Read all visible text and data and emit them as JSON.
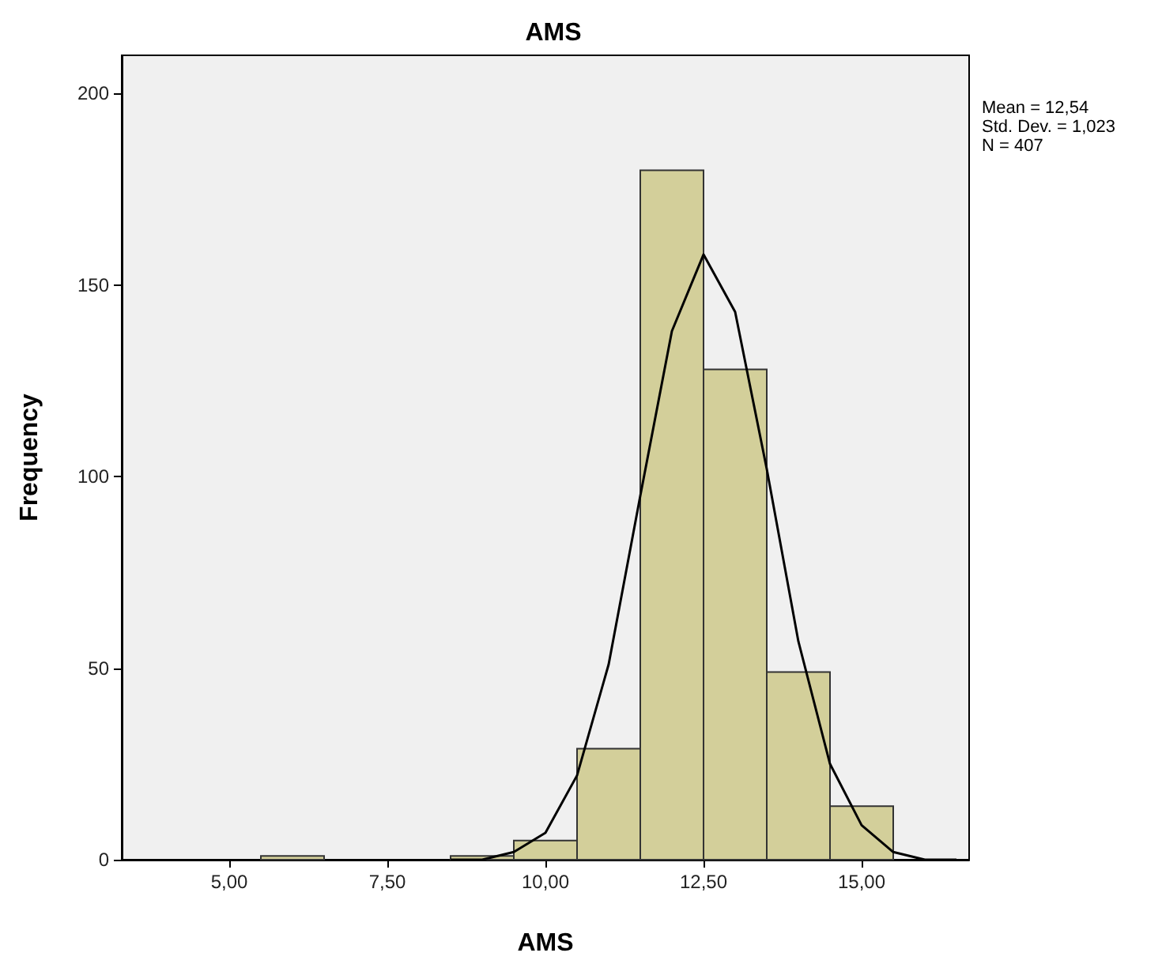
{
  "chart_data": {
    "type": "histogram",
    "title": "AMS",
    "xlabel": "AMS",
    "ylabel": "Frequency",
    "bins": [
      5.5,
      6.5,
      7.5,
      8.5,
      9.5,
      10.5,
      11.5,
      12.5,
      13.5,
      14.5,
      15.5
    ],
    "values": [
      1,
      0,
      0,
      1,
      5,
      29,
      180,
      128,
      49,
      14
    ],
    "color": "#d3cf9a",
    "series": [
      {
        "type": "line",
        "color": "#000000",
        "x": [
          8.5,
          9,
          9.5,
          10,
          10.5,
          11,
          11.5,
          12,
          12.5,
          13,
          13.5,
          14,
          14.5,
          15,
          15.5,
          16,
          16.5
        ],
        "values": [
          0,
          0,
          2,
          7,
          22,
          51,
          95,
          138,
          158,
          143,
          102,
          57,
          25,
          9,
          2,
          0,
          0
        ]
      }
    ],
    "xlim": [
      3.3,
      16.7
    ],
    "ylim": [
      0,
      210
    ],
    "xticks": [
      {
        "value": 5,
        "label": "5,00"
      },
      {
        "value": 7.5,
        "label": "7,50"
      },
      {
        "value": 10,
        "label": "10,00"
      },
      {
        "value": 12.5,
        "label": "12,50"
      },
      {
        "value": 15,
        "label": "15,00"
      }
    ],
    "yticks": [
      0,
      50,
      100,
      150,
      200
    ],
    "grid": false,
    "marker": "none",
    "line_style": "solid",
    "annotations": [
      "Mean = 12,54",
      "Std. Dev. = 1,023",
      "N = 407"
    ]
  }
}
